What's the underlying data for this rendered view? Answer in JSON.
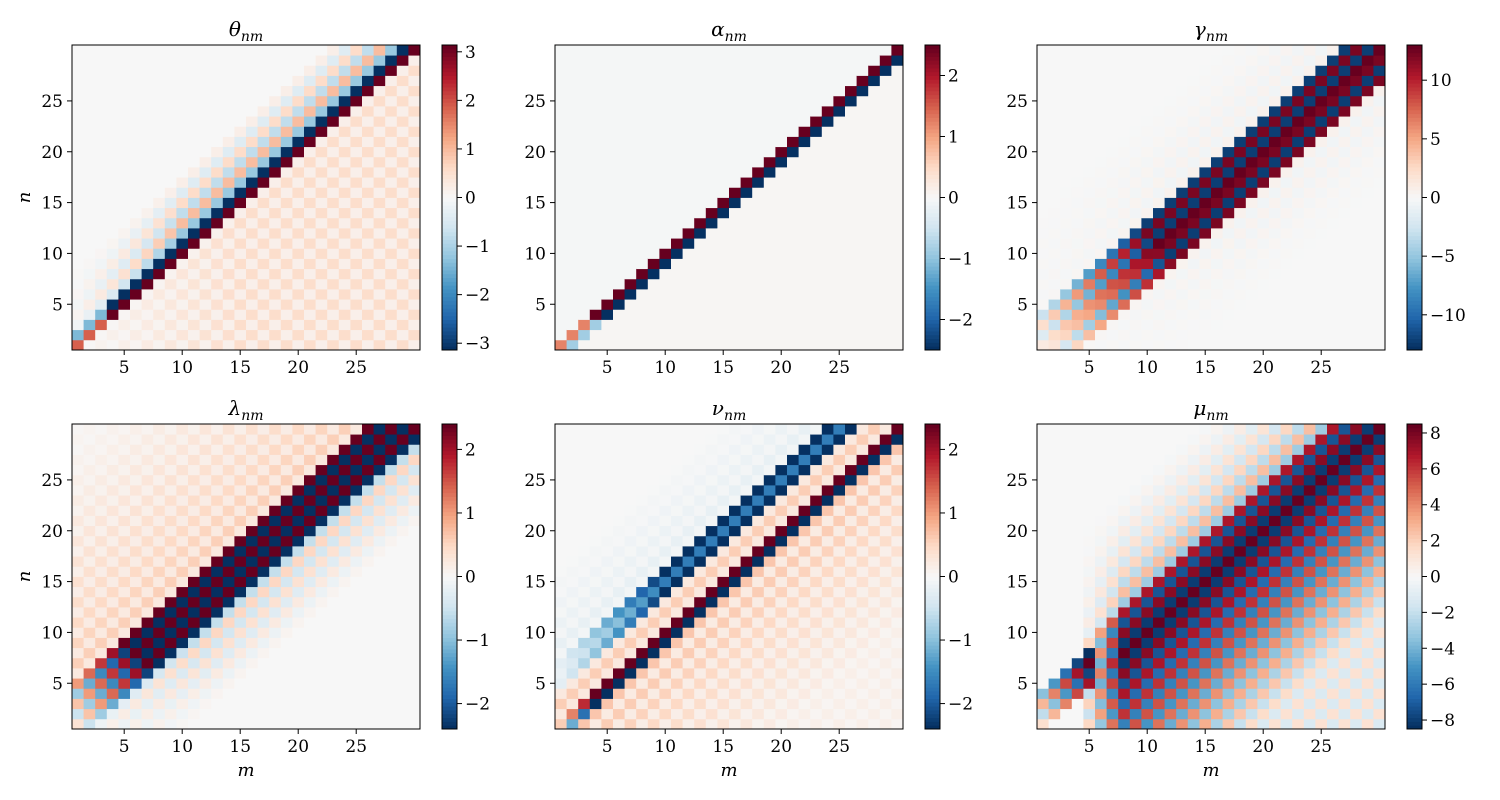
{
  "chart_data": [
    {
      "type": "heatmap",
      "title": "θ",
      "subscript": "nm",
      "pattern": "theta",
      "xlabel": "",
      "ylabel": "n",
      "x_range": [
        1,
        30
      ],
      "y_range": [
        1,
        30
      ],
      "xticks": [
        5,
        10,
        15,
        20,
        25
      ],
      "yticks": [
        5,
        10,
        15,
        20,
        25
      ],
      "colormap": "RdBu_r",
      "vmin": -3.14,
      "vmax": 3.14,
      "colorbar_ticks": [
        -3,
        -2,
        -1,
        0,
        1,
        2,
        3
      ]
    },
    {
      "type": "heatmap",
      "title": "α",
      "subscript": "nm",
      "pattern": "alpha",
      "xlabel": "",
      "ylabel": "",
      "x_range": [
        1,
        30
      ],
      "y_range": [
        1,
        30
      ],
      "xticks": [
        5,
        10,
        15,
        20,
        25
      ],
      "yticks": [
        5,
        10,
        15,
        20,
        25
      ],
      "colormap": "RdBu_r",
      "vmin": -2.5,
      "vmax": 2.5,
      "colorbar_ticks": [
        -2,
        -1,
        0,
        1,
        2
      ]
    },
    {
      "type": "heatmap",
      "title": "γ",
      "subscript": "nm",
      "pattern": "gamma",
      "xlabel": "",
      "ylabel": "",
      "x_range": [
        1,
        30
      ],
      "y_range": [
        1,
        30
      ],
      "xticks": [
        5,
        10,
        15,
        20,
        25
      ],
      "yticks": [
        5,
        10,
        15,
        20,
        25
      ],
      "colormap": "RdBu_r",
      "vmin": -13,
      "vmax": 13,
      "colorbar_ticks": [
        -10,
        -5,
        0,
        5,
        10
      ]
    },
    {
      "type": "heatmap",
      "title": "λ",
      "subscript": "nm",
      "pattern": "lambda",
      "xlabel": "m",
      "ylabel": "n",
      "x_range": [
        1,
        30
      ],
      "y_range": [
        1,
        30
      ],
      "xticks": [
        5,
        10,
        15,
        20,
        25
      ],
      "yticks": [
        5,
        10,
        15,
        20,
        25
      ],
      "colormap": "RdBu_r",
      "vmin": -2.4,
      "vmax": 2.4,
      "colorbar_ticks": [
        -2,
        -1,
        0,
        1,
        2
      ]
    },
    {
      "type": "heatmap",
      "title": "ν",
      "subscript": "nm",
      "pattern": "nu",
      "xlabel": "m",
      "ylabel": "",
      "x_range": [
        1,
        30
      ],
      "y_range": [
        1,
        30
      ],
      "xticks": [
        5,
        10,
        15,
        20,
        25
      ],
      "yticks": [
        5,
        10,
        15,
        20,
        25
      ],
      "colormap": "RdBu_r",
      "vmin": -2.4,
      "vmax": 2.4,
      "colorbar_ticks": [
        -2,
        -1,
        0,
        1,
        2
      ]
    },
    {
      "type": "heatmap",
      "title": "μ",
      "subscript": "nm",
      "pattern": "mu",
      "xlabel": "m",
      "ylabel": "",
      "x_range": [
        1,
        30
      ],
      "y_range": [
        1,
        30
      ],
      "xticks": [
        5,
        10,
        15,
        20,
        25
      ],
      "yticks": [
        5,
        10,
        15,
        20,
        25
      ],
      "colormap": "RdBu_r",
      "vmin": -8.5,
      "vmax": 8.5,
      "colorbar_ticks": [
        -8,
        -6,
        -4,
        -2,
        0,
        2,
        4,
        6,
        8
      ]
    }
  ]
}
